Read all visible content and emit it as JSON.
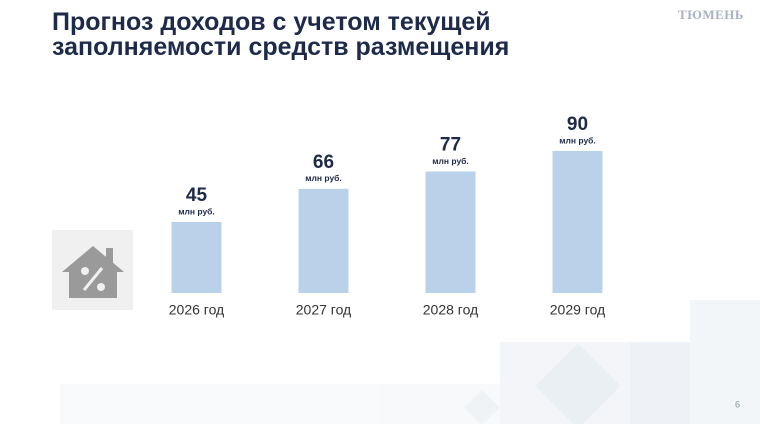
{
  "logo": "ТЮМЕНЬ",
  "page_number": 6,
  "chart_data": {
    "type": "bar",
    "title": "Прогноз доходов с учетом текущей заполняемости средств размещения",
    "categories": [
      "2026 год",
      "2027 год",
      "2028 год",
      "2029 год"
    ],
    "values": [
      45,
      66,
      77,
      90
    ],
    "unit": "млн руб.",
    "color": "#b9d1e9"
  }
}
